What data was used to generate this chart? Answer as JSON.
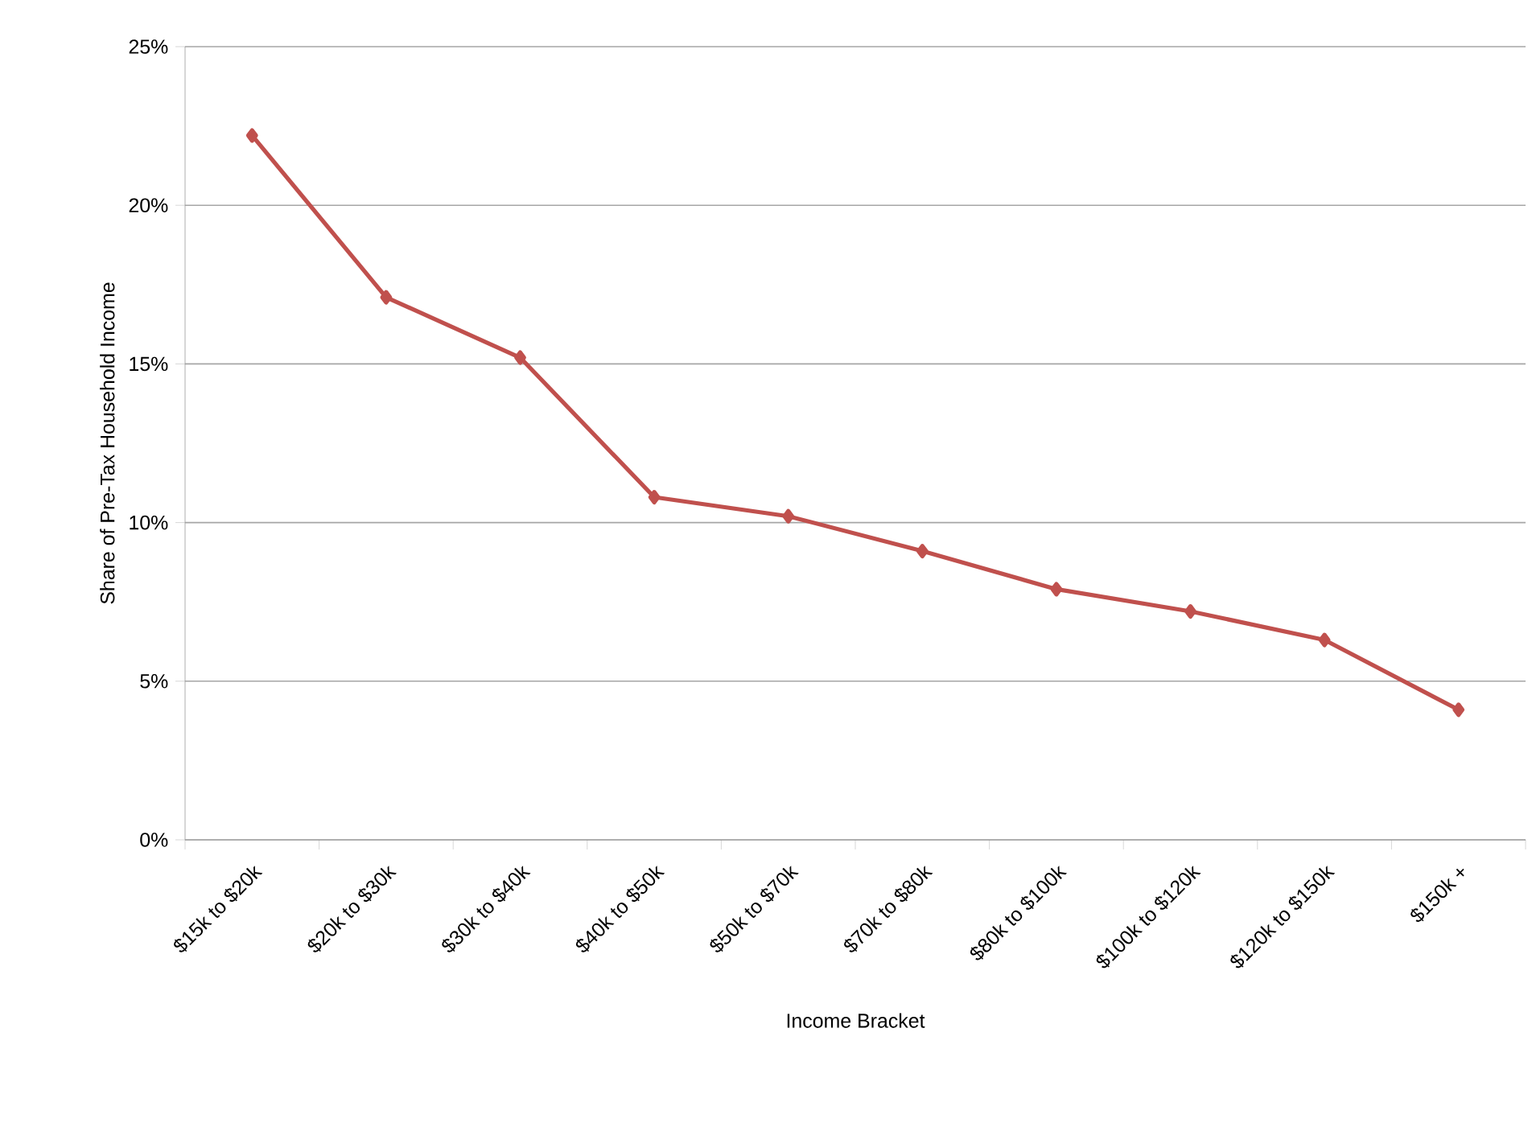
{
  "chart_data": {
    "type": "line",
    "xlabel": "Income Bracket",
    "ylabel": "Share of Pre-Tax Household Income",
    "categories": [
      "$15k to $20k",
      "$20k to $30k",
      "$30k to $40k",
      "$40k to $50k",
      "$50k to $70k",
      "$70k to $80k",
      "$80k to $100k",
      "$100k to $120k",
      "$120k to $150k",
      "$150k +"
    ],
    "series": [
      {
        "color": "#c0504d",
        "values": [
          22.2,
          17.1,
          15.2,
          10.8,
          10.2,
          9.1,
          7.9,
          7.2,
          6.3,
          4.1
        ]
      }
    ],
    "ylim": [
      0,
      25
    ],
    "yticks": [
      {
        "value": 0,
        "label": "0%"
      },
      {
        "value": 5,
        "label": "5%"
      },
      {
        "value": 10,
        "label": "10%"
      },
      {
        "value": 15,
        "label": "15%"
      },
      {
        "value": 20,
        "label": "20%"
      },
      {
        "value": 25,
        "label": "25%"
      }
    ],
    "grid": "y",
    "marker": "diamond",
    "line_style": "solid"
  }
}
